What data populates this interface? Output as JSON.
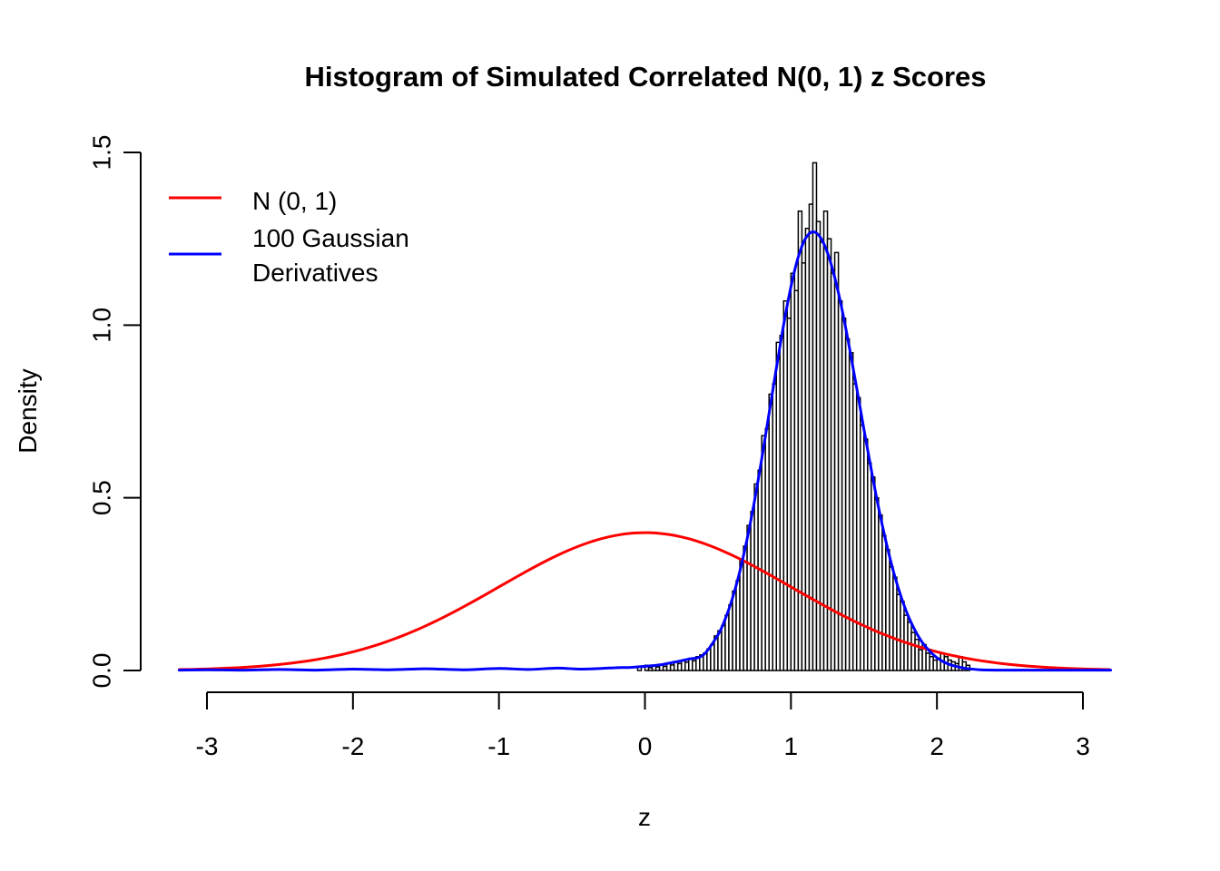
{
  "chart_data": {
    "type": "bar",
    "subtype": "histogram-with-density-curves",
    "title": "Histogram of Simulated Correlated N(0, 1) z Scores",
    "xlabel": "z",
    "ylabel": "Density",
    "xlim": [
      -3.19,
      3.19
    ],
    "ylim": [
      0,
      1.5
    ],
    "x_ticks": [
      -3,
      -2,
      -1,
      0,
      1,
      2,
      3
    ],
    "y_ticks": [
      {
        "value": 0.0,
        "label": "0.0"
      },
      {
        "value": 0.5,
        "label": "0.5"
      },
      {
        "value": 1.0,
        "label": "1.0"
      },
      {
        "value": 1.5,
        "label": "1.5"
      }
    ],
    "grid": false,
    "legend_position": "top-left",
    "colors": {
      "axis": "#000000",
      "bar_fill": "#ffffff",
      "bar_stroke": "#000000",
      "normal_curve": "#ff0000",
      "kde_curve": "#0000ff"
    },
    "histogram": {
      "bin_start": -0.05,
      "bin_width": 0.025,
      "peak_density": 1.47,
      "heights": [
        0.012,
        0,
        0.015,
        0.008,
        0.014,
        0.01,
        0.018,
        0.012,
        0.022,
        0.016,
        0.026,
        0.02,
        0.03,
        0.024,
        0.035,
        0.028,
        0.04,
        0.045,
        0.05,
        0.062,
        0.075,
        0.1,
        0.115,
        0.13,
        0.16,
        0.19,
        0.23,
        0.26,
        0.32,
        0.36,
        0.42,
        0.46,
        0.54,
        0.58,
        0.68,
        0.7,
        0.8,
        0.83,
        0.95,
        0.97,
        1.07,
        1.02,
        1.15,
        1.1,
        1.33,
        1.18,
        1.28,
        1.35,
        1.47,
        1.3,
        1.24,
        1.33,
        1.25,
        1.15,
        1.21,
        1.07,
        1.02,
        0.96,
        0.92,
        0.83,
        0.79,
        0.71,
        0.67,
        0.6,
        0.56,
        0.5,
        0.45,
        0.39,
        0.35,
        0.3,
        0.27,
        0.22,
        0.2,
        0.16,
        0.14,
        0.11,
        0.09,
        0.06,
        0.075,
        0.05,
        0.04,
        0.03,
        0.035,
        0.05,
        0.04,
        0.03,
        0.025,
        0.02,
        0.04,
        0.025,
        0.015
      ]
    },
    "curves": [
      {
        "name": "N (0, 1)",
        "color": "#ff0000",
        "type": "normal-pdf",
        "mean": 0,
        "sd": 1,
        "peak": 0.399,
        "range": [
          -3.19,
          3.19
        ]
      },
      {
        "name": "100 Gaussian Derivatives",
        "color": "#0000ff",
        "type": "kde",
        "peak": 1.27,
        "peak_at": 1.15,
        "points": [
          [
            -3.19,
            0.001
          ],
          [
            -3.0,
            0.002
          ],
          [
            -2.75,
            0.001
          ],
          [
            -2.5,
            0.003
          ],
          [
            -2.25,
            0.001
          ],
          [
            -2.0,
            0.004
          ],
          [
            -1.75,
            0.002
          ],
          [
            -1.5,
            0.005
          ],
          [
            -1.25,
            0.002
          ],
          [
            -1.0,
            0.006
          ],
          [
            -0.8,
            0.003
          ],
          [
            -0.6,
            0.007
          ],
          [
            -0.45,
            0.004
          ],
          [
            -0.3,
            0.006
          ],
          [
            -0.2,
            0.008
          ],
          [
            -0.1,
            0.009
          ],
          [
            0.0,
            0.012
          ],
          [
            0.1,
            0.016
          ],
          [
            0.2,
            0.024
          ],
          [
            0.3,
            0.033
          ],
          [
            0.4,
            0.045
          ],
          [
            0.5,
            0.103
          ],
          [
            0.55,
            0.149
          ],
          [
            0.6,
            0.21
          ],
          [
            0.65,
            0.287
          ],
          [
            0.7,
            0.381
          ],
          [
            0.75,
            0.49
          ],
          [
            0.8,
            0.613
          ],
          [
            0.85,
            0.744
          ],
          [
            0.9,
            0.875
          ],
          [
            0.95,
            1.001
          ],
          [
            1.0,
            1.111
          ],
          [
            1.05,
            1.197
          ],
          [
            1.1,
            1.251
          ],
          [
            1.15,
            1.27
          ],
          [
            1.2,
            1.255
          ],
          [
            1.25,
            1.21
          ],
          [
            1.3,
            1.138
          ],
          [
            1.35,
            1.045
          ],
          [
            1.4,
            0.936
          ],
          [
            1.45,
            0.819
          ],
          [
            1.5,
            0.698
          ],
          [
            1.55,
            0.582
          ],
          [
            1.6,
            0.472
          ],
          [
            1.65,
            0.375
          ],
          [
            1.7,
            0.29
          ],
          [
            1.75,
            0.219
          ],
          [
            1.8,
            0.161
          ],
          [
            1.85,
            0.116
          ],
          [
            1.9,
            0.081
          ],
          [
            1.95,
            0.056
          ],
          [
            2.0,
            0.037
          ],
          [
            2.05,
            0.024
          ],
          [
            2.1,
            0.0155
          ],
          [
            2.15,
            0.01
          ],
          [
            2.2,
            0.006
          ],
          [
            2.3,
            0.002
          ],
          [
            2.45,
            0.001
          ],
          [
            2.7,
            0.001
          ],
          [
            3.0,
            0.001
          ],
          [
            3.19,
            0.001
          ]
        ]
      }
    ],
    "legend": [
      {
        "label": "N (0, 1)",
        "color": "#ff0000"
      },
      {
        "label": "100 Gaussian\nDerivatives",
        "color": "#0000ff"
      }
    ]
  }
}
